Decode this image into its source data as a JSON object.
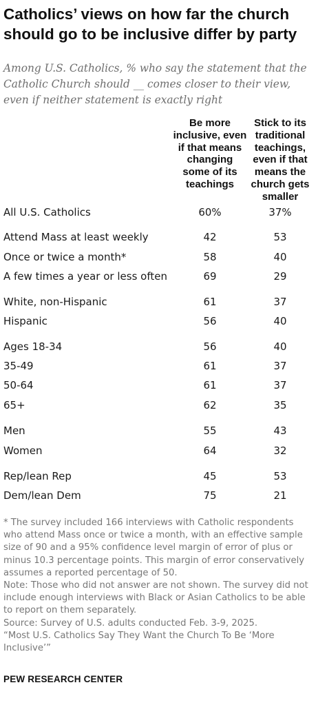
{
  "title": "Catholics’ views on how far the church should go to be inclusive differ by party",
  "subtitle": "Among U.S. Catholics, % who say the statement that the Catholic Church should __ comes closer to their view, even if neither statement is exactly right",
  "chart_data": {
    "type": "table",
    "columns": [
      "Be more inclusive, even if that means changing some of its teachings",
      "Stick to its traditional teachings, even if that means the church gets smaller"
    ],
    "rows": [
      {
        "label": "All U.S. Catholics",
        "values": [
          "60%",
          "37%"
        ]
      },
      {
        "label": "Attend Mass at least weekly",
        "values": [
          "42",
          "53"
        ]
      },
      {
        "label": "Once or twice a month*",
        "values": [
          "58",
          "40"
        ]
      },
      {
        "label": "A few times a year or less often",
        "values": [
          "69",
          "29"
        ]
      },
      {
        "label": "White, non-Hispanic",
        "values": [
          "61",
          "37"
        ]
      },
      {
        "label": "Hispanic",
        "values": [
          "56",
          "40"
        ]
      },
      {
        "label": "Ages 18-34",
        "values": [
          "56",
          "40"
        ]
      },
      {
        "label": "35-49",
        "values": [
          "61",
          "37"
        ]
      },
      {
        "label": "50-64",
        "values": [
          "61",
          "37"
        ]
      },
      {
        "label": "65+",
        "values": [
          "62",
          "35"
        ]
      },
      {
        "label": "Men",
        "values": [
          "55",
          "43"
        ]
      },
      {
        "label": "Women",
        "values": [
          "64",
          "32"
        ]
      },
      {
        "label": "Rep/lean Rep",
        "values": [
          "45",
          "53"
        ]
      },
      {
        "label": "Dem/lean Dem",
        "values": [
          "75",
          "21"
        ]
      }
    ]
  },
  "notes": {
    "asterisk": "* The survey included 166 interviews with Catholic respondents who attend Mass once or twice a month, with an effective sample size of 90 and a 95% confidence level margin of error of plus or minus 10.3 percentage points. This margin of error conservatively assumes a reported percentage of 50.",
    "note": "Note: Those who did not answer are not shown. The survey did not include enough interviews with Black or Asian Catholics to be able to report on them separately.",
    "source": "Source: Survey of U.S. adults conducted Feb. 3-9, 2025.",
    "report": "“Most U.S. Catholics Say They Want the Church To Be ‘More Inclusive’”"
  },
  "brand": "PEW RESEARCH CENTER"
}
